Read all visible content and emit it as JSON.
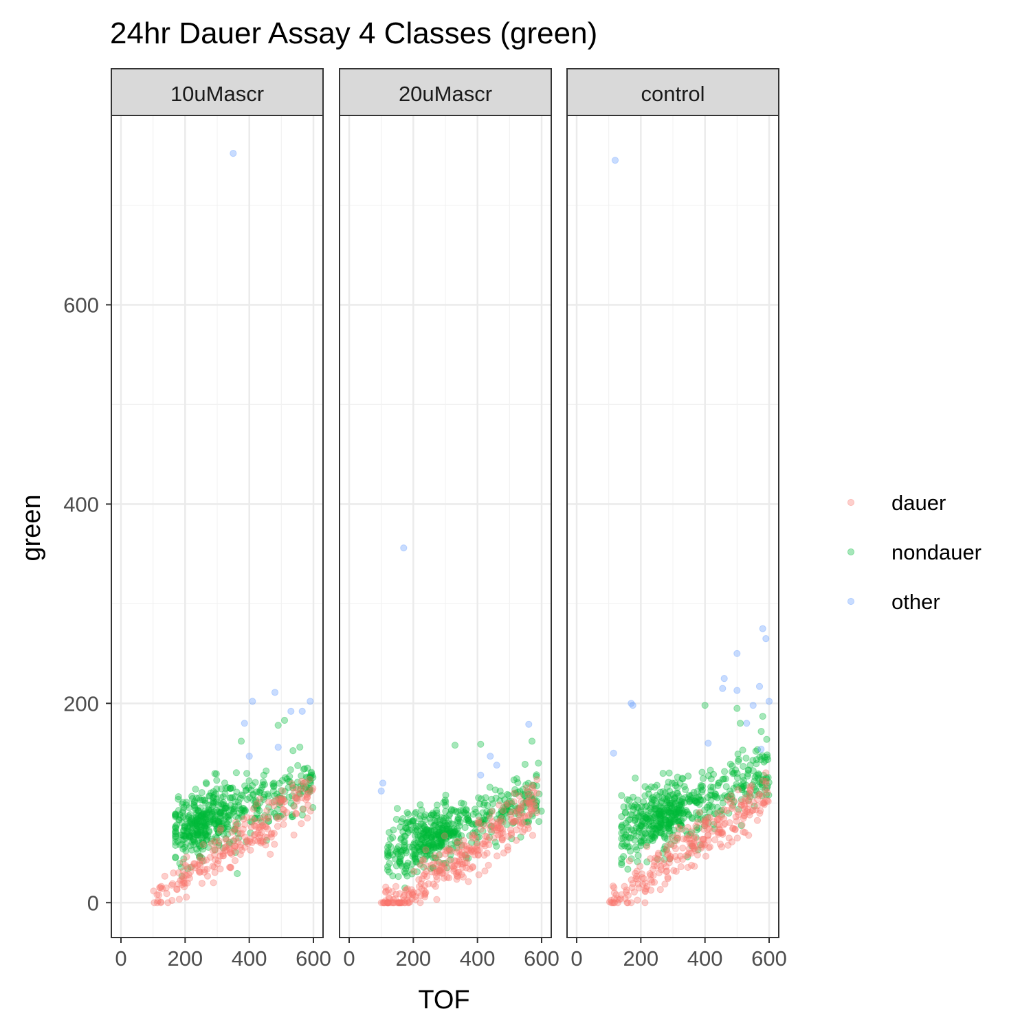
{
  "chart_data": {
    "type": "scatter",
    "title": "24hr Dauer Assay 4 Classes (green)",
    "xlabel": "TOF",
    "ylabel": "green",
    "xlim": [
      -30,
      630
    ],
    "ylim": [
      -35,
      790
    ],
    "x_ticks": [
      0,
      200,
      400,
      600
    ],
    "y_ticks": [
      0,
      200,
      400,
      600
    ],
    "x_tick_labels": [
      "0",
      "200",
      "400",
      "600"
    ],
    "y_tick_labels": [
      "0",
      "200",
      "400",
      "600"
    ],
    "grid": true,
    "legend_position": "right",
    "point_alpha": 0.35,
    "panels": [
      "10uMascr",
      "20uMascr",
      "control"
    ],
    "series": [
      {
        "name": "dauer",
        "color": "#F8766D"
      },
      {
        "name": "nondauer",
        "color": "#00BA38"
      },
      {
        "name": "other",
        "color": "#619CFF"
      }
    ],
    "clusters": {
      "10uMascr": {
        "dauer": {
          "n": 230,
          "x_range": [
            100,
            600
          ],
          "y_at_x0": -20,
          "slope": 0.205,
          "spread": 12
        },
        "nondauer": {
          "n": 520,
          "x_range": [
            170,
            600
          ],
          "y_at_x0": 50,
          "slope": 0.12,
          "spread": 16
        }
      },
      "20uMascr": {
        "dauer": {
          "n": 300,
          "x_range": [
            100,
            590
          ],
          "y_at_x0": -30,
          "slope": 0.2,
          "spread": 12
        },
        "nondauer": {
          "n": 520,
          "x_range": [
            120,
            600
          ],
          "y_at_x0": 35,
          "slope": 0.12,
          "spread": 14
        }
      },
      "control": {
        "dauer": {
          "n": 260,
          "x_range": [
            100,
            600
          ],
          "y_at_x0": -22,
          "slope": 0.205,
          "spread": 12
        },
        "nondauer": {
          "n": 540,
          "x_range": [
            140,
            600
          ],
          "y_at_x0": 55,
          "slope": 0.12,
          "spread": 17
        }
      }
    },
    "outliers": {
      "10uMascr": [
        {
          "x": 350,
          "y": 752,
          "class": "other"
        },
        {
          "x": 410,
          "y": 202,
          "class": "other"
        },
        {
          "x": 480,
          "y": 211,
          "class": "other"
        },
        {
          "x": 385,
          "y": 180,
          "class": "other"
        },
        {
          "x": 530,
          "y": 192,
          "class": "other"
        },
        {
          "x": 565,
          "y": 192,
          "class": "other"
        },
        {
          "x": 590,
          "y": 202,
          "class": "other"
        },
        {
          "x": 400,
          "y": 147,
          "class": "other"
        },
        {
          "x": 490,
          "y": 156,
          "class": "other"
        },
        {
          "x": 375,
          "y": 162,
          "class": "nondauer"
        },
        {
          "x": 510,
          "y": 183,
          "class": "nondauer"
        },
        {
          "x": 490,
          "y": 178,
          "class": "nondauer"
        }
      ],
      "20uMascr": [
        {
          "x": 170,
          "y": 356,
          "class": "other"
        },
        {
          "x": 105,
          "y": 120,
          "class": "other"
        },
        {
          "x": 100,
          "y": 112,
          "class": "other"
        },
        {
          "x": 560,
          "y": 179,
          "class": "other"
        },
        {
          "x": 440,
          "y": 147,
          "class": "other"
        },
        {
          "x": 460,
          "y": 138,
          "class": "other"
        },
        {
          "x": 410,
          "y": 128,
          "class": "other"
        },
        {
          "x": 330,
          "y": 158,
          "class": "nondauer"
        },
        {
          "x": 410,
          "y": 159,
          "class": "nondauer"
        },
        {
          "x": 570,
          "y": 162,
          "class": "nondauer"
        },
        {
          "x": 590,
          "y": 140,
          "class": "nondauer"
        },
        {
          "x": 120,
          "y": 36,
          "class": "nondauer"
        }
      ],
      "control": [
        {
          "x": 120,
          "y": 745,
          "class": "other"
        },
        {
          "x": 170,
          "y": 200,
          "class": "other"
        },
        {
          "x": 175,
          "y": 198,
          "class": "other"
        },
        {
          "x": 115,
          "y": 150,
          "class": "other"
        },
        {
          "x": 500,
          "y": 250,
          "class": "other"
        },
        {
          "x": 580,
          "y": 275,
          "class": "other"
        },
        {
          "x": 590,
          "y": 265,
          "class": "other"
        },
        {
          "x": 460,
          "y": 225,
          "class": "other"
        },
        {
          "x": 455,
          "y": 215,
          "class": "other"
        },
        {
          "x": 500,
          "y": 213,
          "class": "other"
        },
        {
          "x": 570,
          "y": 217,
          "class": "other"
        },
        {
          "x": 600,
          "y": 202,
          "class": "other"
        },
        {
          "x": 550,
          "y": 198,
          "class": "other"
        },
        {
          "x": 530,
          "y": 180,
          "class": "other"
        },
        {
          "x": 410,
          "y": 160,
          "class": "other"
        },
        {
          "x": 575,
          "y": 154,
          "class": "other"
        },
        {
          "x": 400,
          "y": 198,
          "class": "nondauer"
        },
        {
          "x": 500,
          "y": 195,
          "class": "nondauer"
        },
        {
          "x": 580,
          "y": 187,
          "class": "nondauer"
        },
        {
          "x": 510,
          "y": 180,
          "class": "nondauer"
        },
        {
          "x": 150,
          "y": 57,
          "class": "nondauer"
        },
        {
          "x": 140,
          "y": 40,
          "class": "nondauer"
        }
      ]
    }
  }
}
